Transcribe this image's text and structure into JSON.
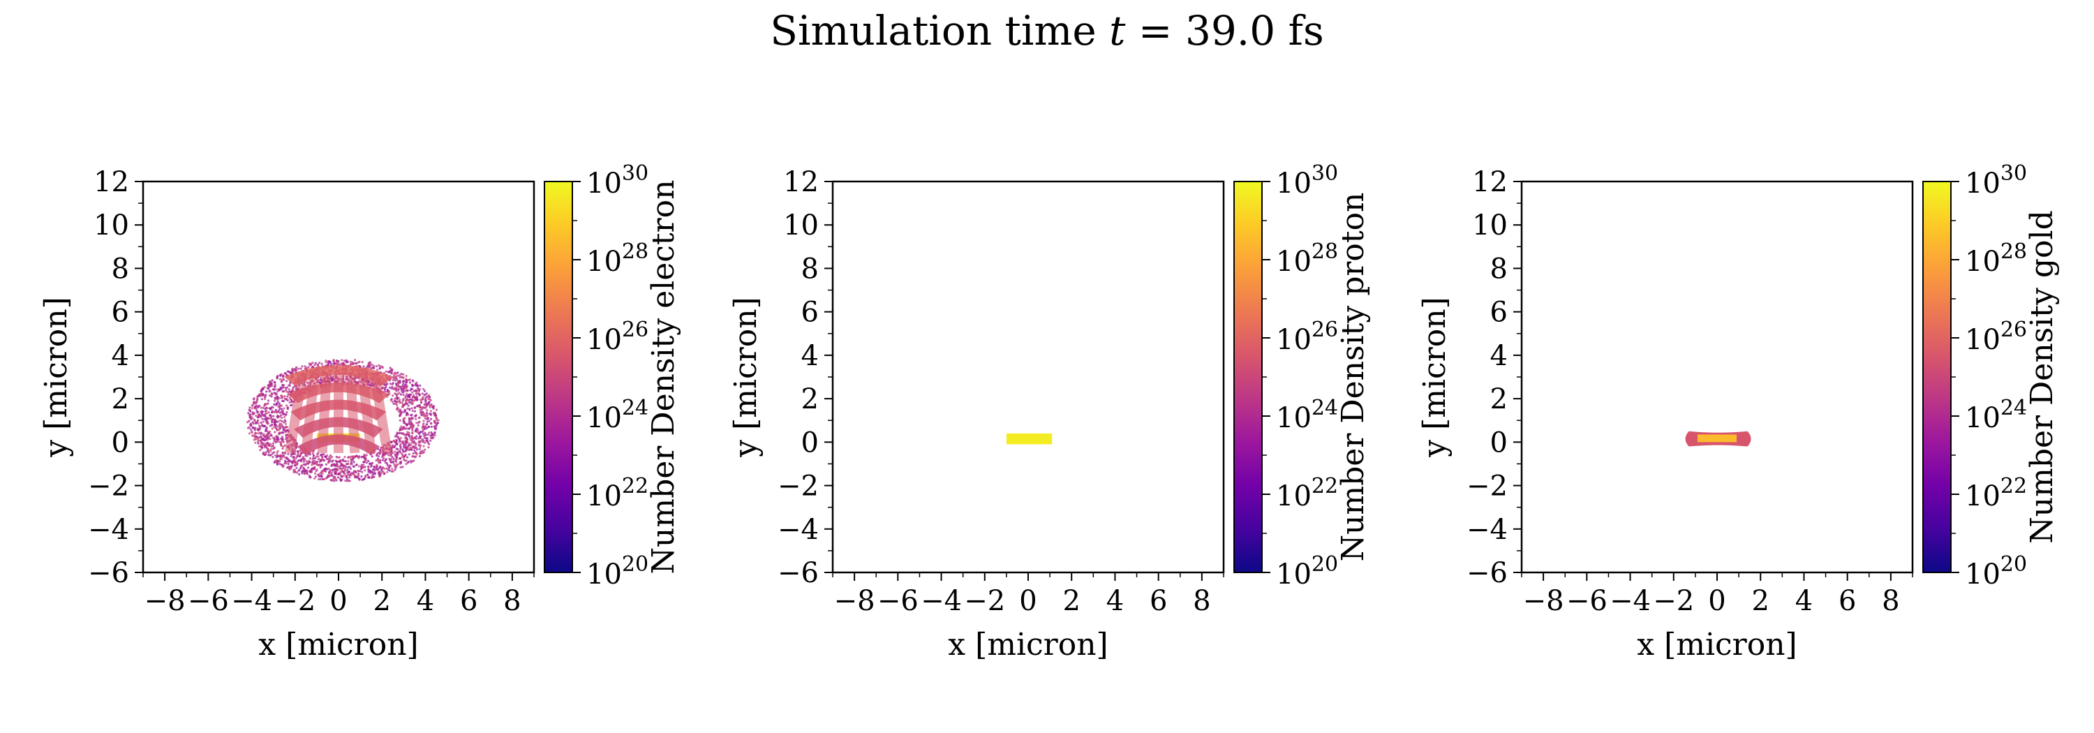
{
  "title": {
    "prefix": "Simulation time ",
    "var": "t",
    "suffix": " = 39.0 fs"
  },
  "colormap": {
    "name": "plasma",
    "stops": [
      "#0d0887",
      "#46039f",
      "#7201a8",
      "#9c179e",
      "#bd3786",
      "#d8576b",
      "#ed7953",
      "#fb9f3a",
      "#fdca26",
      "#f0f921"
    ]
  },
  "chart_data": [
    {
      "type": "heatmap",
      "species": "electron",
      "xlabel": "x [micron]",
      "ylabel": "y [micron]",
      "xlim": [
        -9,
        9
      ],
      "ylim": [
        -6,
        12
      ],
      "xticks": [
        -8,
        -6,
        -4,
        -2,
        0,
        2,
        4,
        6,
        8
      ],
      "yticks": [
        -6,
        -4,
        -2,
        0,
        2,
        4,
        6,
        8,
        10,
        12
      ],
      "colorbar": {
        "label": "Number Density electron",
        "scale": "log",
        "range": [
          1e+20,
          1e+30
        ],
        "ticks": [
          20,
          22,
          24,
          26,
          28,
          30
        ]
      },
      "features": [
        {
          "shape": "rect",
          "x": [
            -1.0,
            1.0
          ],
          "y": [
            0.0,
            0.4
          ],
          "log10_density": 29.5
        },
        {
          "shape": "cloud",
          "x": [
            -4.2,
            4.6
          ],
          "y": [
            -1.8,
            3.8
          ],
          "log10_density": 24.5
        },
        {
          "shape": "dome",
          "x": [
            -2.5,
            2.5
          ],
          "y": [
            -0.5,
            3.5
          ],
          "log10_density": 26.0
        }
      ]
    },
    {
      "type": "heatmap",
      "species": "proton",
      "xlabel": "x [micron]",
      "ylabel": "y [micron]",
      "xlim": [
        -9,
        9
      ],
      "ylim": [
        -6,
        12
      ],
      "xticks": [
        -8,
        -6,
        -4,
        -2,
        0,
        2,
        4,
        6,
        8
      ],
      "yticks": [
        -6,
        -4,
        -2,
        0,
        2,
        4,
        6,
        8,
        10,
        12
      ],
      "colorbar": {
        "label": "Number Density proton",
        "scale": "log",
        "range": [
          1e+20,
          1e+30
        ],
        "ticks": [
          20,
          22,
          24,
          26,
          28,
          30
        ]
      },
      "features": [
        {
          "shape": "rect",
          "x": [
            -1.0,
            1.1
          ],
          "y": [
            -0.1,
            0.4
          ],
          "log10_density": 29.7
        }
      ]
    },
    {
      "type": "heatmap",
      "species": "gold",
      "xlabel": "x [micron]",
      "ylabel": "y [micron]",
      "xlim": [
        -9,
        9
      ],
      "ylim": [
        -6,
        12
      ],
      "xticks": [
        -8,
        -6,
        -4,
        -2,
        0,
        2,
        4,
        6,
        8
      ],
      "yticks": [
        -6,
        -4,
        -2,
        0,
        2,
        4,
        6,
        8,
        10,
        12
      ],
      "colorbar": {
        "label": "Number Density gold",
        "scale": "log",
        "range": [
          1e+20,
          1e+30
        ],
        "ticks": [
          20,
          22,
          24,
          26,
          28,
          30
        ]
      },
      "features": [
        {
          "shape": "bar",
          "x": [
            -1.3,
            1.4
          ],
          "y": [
            -0.2,
            0.5
          ],
          "log10_density": 25.5
        },
        {
          "shape": "rect",
          "x": [
            -0.9,
            0.9
          ],
          "y": [
            0.0,
            0.35
          ],
          "log10_density": 28.5
        }
      ]
    }
  ]
}
